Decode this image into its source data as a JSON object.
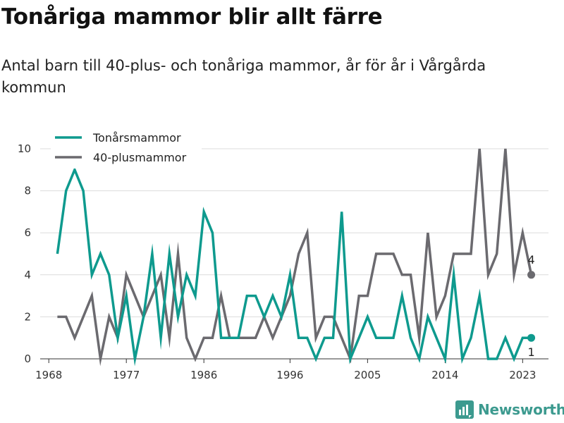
{
  "title": "Tonåriga mammor blir allt färre",
  "subtitle": "Antal barn till 40-plus- och tonåriga mammor, år för år i Vårgårda kommun",
  "brand": {
    "name": "Newsworthy",
    "logo_icon": "bar-chart-logo-icon",
    "color": "#3c9a8f"
  },
  "chart_data": {
    "type": "line",
    "title": "Tonåriga mammor blir allt färre",
    "subtitle": "Antal barn till 40-plus- och tonåriga mammor, år för år i Vårgårda kommun",
    "xlabel": "",
    "ylabel": "",
    "x_ticks": [
      "1968",
      "1977",
      "1986",
      "1996",
      "2005",
      "2014",
      "2023"
    ],
    "y_ticks": [
      "0",
      "2",
      "4",
      "6",
      "8",
      "10"
    ],
    "xlim": [
      1967,
      2026
    ],
    "ylim": [
      0,
      10
    ],
    "grid": "horizontal",
    "legend_position": "top-left",
    "x": [
      1969,
      1970,
      1971,
      1972,
      1973,
      1974,
      1975,
      1976,
      1977,
      1978,
      1979,
      1980,
      1981,
      1982,
      1983,
      1984,
      1985,
      1986,
      1987,
      1988,
      1989,
      1990,
      1991,
      1992,
      1993,
      1994,
      1995,
      1996,
      1997,
      1998,
      1999,
      2000,
      2001,
      2002,
      2003,
      2004,
      2005,
      2006,
      2007,
      2008,
      2009,
      2010,
      2011,
      2012,
      2013,
      2014,
      2015,
      2016,
      2017,
      2018,
      2019,
      2020,
      2021,
      2022,
      2023,
      2024
    ],
    "series": [
      {
        "name": "Tonårsmammor",
        "color": "#0e9a8e",
        "values": [
          5,
          8,
          9,
          8,
          4,
          5,
          4,
          1,
          3,
          0,
          2,
          5,
          1,
          5,
          2,
          4,
          3,
          7,
          6,
          1,
          1,
          1,
          3,
          3,
          2,
          3,
          2,
          4,
          1,
          1,
          0,
          1,
          1,
          7,
          0,
          1,
          2,
          1,
          1,
          1,
          3,
          1,
          0,
          2,
          1,
          0,
          4,
          0,
          1,
          3,
          0,
          0,
          1,
          0,
          1,
          1
        ],
        "end_label": "1"
      },
      {
        "name": "40-plusmammor",
        "color": "#6b6a6f",
        "values": [
          2,
          2,
          1,
          2,
          3,
          0,
          2,
          1,
          4,
          3,
          2,
          3,
          4,
          1,
          5,
          1,
          0,
          1,
          1,
          3,
          1,
          1,
          1,
          1,
          2,
          1,
          2,
          3,
          5,
          6,
          1,
          2,
          2,
          1,
          0,
          3,
          3,
          5,
          5,
          5,
          4,
          4,
          1,
          6,
          2,
          3,
          5,
          5,
          5,
          10,
          4,
          5,
          10,
          4,
          6,
          4
        ],
        "end_label": "4"
      }
    ]
  }
}
